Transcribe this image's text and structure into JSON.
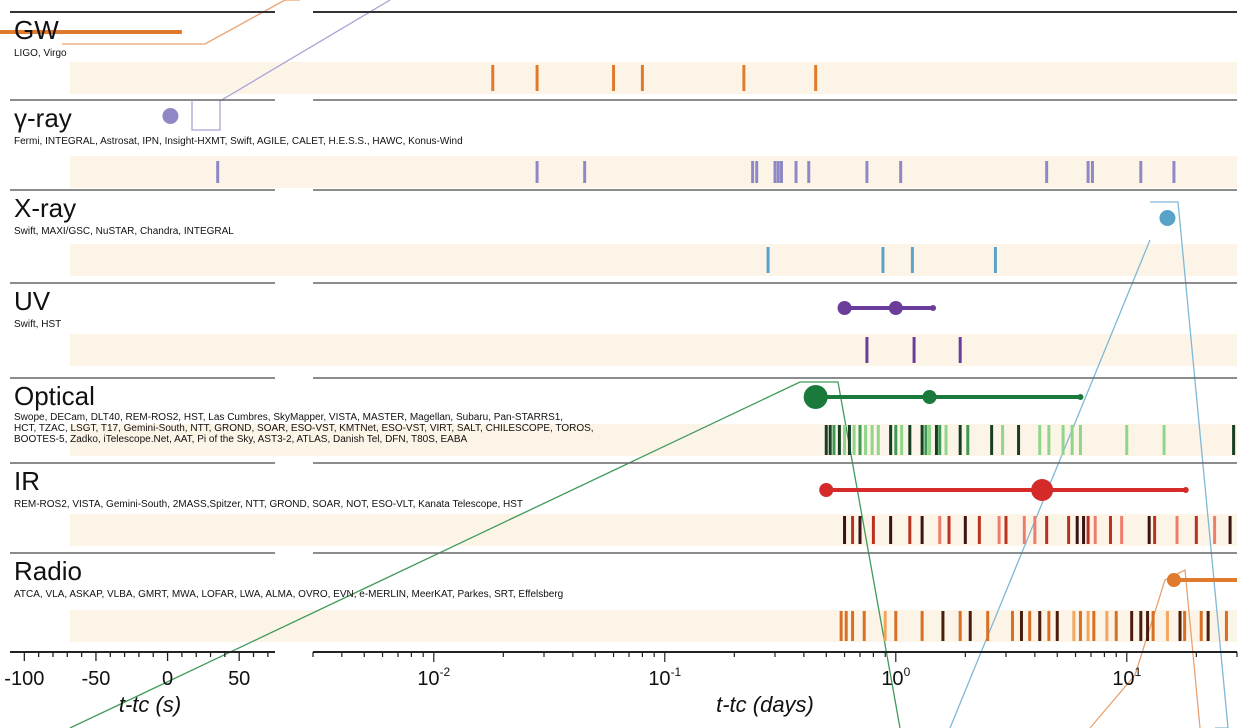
{
  "chart_data": {
    "type": "timeline",
    "xlabel_seconds": "t-tc (s)",
    "xlabel_days": "t-tc (days)",
    "seconds_axis": {
      "ticks": [
        "-100",
        "-50",
        "0",
        "50"
      ],
      "values": [
        -100,
        -50,
        0,
        50
      ],
      "xlim": [
        -110,
        75
      ]
    },
    "days_axis": {
      "scale": "log",
      "xlim": [
        0.003,
        30
      ],
      "major_ticks": [
        0.01,
        0.1,
        1,
        10
      ],
      "tick_bases": [
        "10",
        "10",
        "10",
        "10"
      ],
      "tick_exps": [
        "-2",
        "-1",
        "0",
        "1"
      ]
    },
    "bands": [
      {
        "id": "gw",
        "title": "GW",
        "subtitle": "LIGO, Virgo",
        "color": "#e07b2e",
        "seconds_detection": {
          "type": "span",
          "from": -100,
          "to": 10
        },
        "days_obs": [
          {
            "t": 0.018
          },
          {
            "t": 0.028
          },
          {
            "t": 0.06
          },
          {
            "t": 0.08
          },
          {
            "t": 0.22
          },
          {
            "t": 0.45
          }
        ]
      },
      {
        "id": "gamma",
        "title": "γ-ray",
        "subtitle": "Fermi, INTEGRAL, Astrosat, IPN, Insight-HXMT, Swift, AGILE, CALET, H.E.S.S., HAWC, Konus-Wind",
        "color": "#8f88c6",
        "seconds_detection": {
          "type": "point",
          "t": 2
        },
        "seconds_obs": [
          {
            "t": 35
          }
        ],
        "days_obs": [
          {
            "t": 0.028
          },
          {
            "t": 0.045
          },
          {
            "t": 0.24
          },
          {
            "t": 0.25
          },
          {
            "t": 0.3
          },
          {
            "t": 0.31
          },
          {
            "t": 0.32
          },
          {
            "t": 0.37
          },
          {
            "t": 0.42
          },
          {
            "t": 0.75
          },
          {
            "t": 1.05
          },
          {
            "t": 4.5
          },
          {
            "t": 6.8
          },
          {
            "t": 7.1
          },
          {
            "t": 11.5
          },
          {
            "t": 16
          }
        ]
      },
      {
        "id": "xray",
        "title": "X-ray",
        "subtitle": "Swift, MAXI/GSC, NuSTAR, Chandra, INTEGRAL",
        "color": "#5aa3c8",
        "detection": {
          "type": "point",
          "t": 15
        },
        "days_obs": [
          {
            "t": 0.28
          },
          {
            "t": 0.88
          },
          {
            "t": 1.18
          },
          {
            "t": 2.7
          }
        ]
      },
      {
        "id": "uv",
        "title": "UV",
        "subtitle": "Swift, HST",
        "color": "#6a3d9a",
        "detection": {
          "type": "range",
          "from": 0.6,
          "to": 1.45,
          "mid": 1.0
        },
        "days_obs": [
          {
            "t": 0.75
          },
          {
            "t": 1.2
          },
          {
            "t": 1.9
          }
        ]
      },
      {
        "id": "optical",
        "title": "Optical",
        "subtitle_lines": [
          "Swope, DECam, DLT40, REM-ROS2, HST, Las Cumbres, SkyMapper, VISTA, MASTER, Magellan, Subaru, Pan-STARRS1,",
          "HCT, TZAC, LSGT, T17, Gemini-South, NTT, GROND, SOAR, ESO-VST, KMTNet, ESO-VST, VIRT, SALT, CHILESCOPE, TOROS,",
          "BOOTES-5, Zadko, iTelescope.Net, AAT, Pi of the Sky, AST3-2, ATLAS, Danish Tel, DFN, T80S, EABA"
        ],
        "color": "#1a7a3c",
        "detection": {
          "type": "range",
          "from": 0.45,
          "to": 6.3,
          "mid": 1.4
        },
        "days_obs": [
          {
            "t": 0.5,
            "shade": "dark"
          },
          {
            "t": 0.52,
            "shade": "dark"
          },
          {
            "t": 0.54,
            "shade": "mid"
          },
          {
            "t": 0.57,
            "shade": "dark"
          },
          {
            "t": 0.6,
            "shade": "light"
          },
          {
            "t": 0.63,
            "shade": "dark"
          },
          {
            "t": 0.66,
            "shade": "light"
          },
          {
            "t": 0.7,
            "shade": "mid"
          },
          {
            "t": 0.74,
            "shade": "light"
          },
          {
            "t": 0.79,
            "shade": "light"
          },
          {
            "t": 0.84,
            "shade": "light"
          },
          {
            "t": 0.95,
            "shade": "dark"
          },
          {
            "t": 1.0,
            "shade": "mid"
          },
          {
            "t": 1.06,
            "shade": "light"
          },
          {
            "t": 1.15,
            "shade": "dark"
          },
          {
            "t": 1.3,
            "shade": "dark"
          },
          {
            "t": 1.35,
            "shade": "mid"
          },
          {
            "t": 1.4,
            "shade": "light"
          },
          {
            "t": 1.5,
            "shade": "dark"
          },
          {
            "t": 1.55,
            "shade": "mid"
          },
          {
            "t": 1.65,
            "shade": "light"
          },
          {
            "t": 1.9,
            "shade": "dark"
          },
          {
            "t": 2.05,
            "shade": "mid"
          },
          {
            "t": 2.6,
            "shade": "dark"
          },
          {
            "t": 2.9,
            "shade": "light"
          },
          {
            "t": 3.4,
            "shade": "dark"
          },
          {
            "t": 4.2,
            "shade": "light"
          },
          {
            "t": 4.6,
            "shade": "light"
          },
          {
            "t": 5.3,
            "shade": "light"
          },
          {
            "t": 5.8,
            "shade": "light"
          },
          {
            "t": 6.3,
            "shade": "light"
          },
          {
            "t": 10,
            "shade": "light"
          },
          {
            "t": 14.5,
            "shade": "light"
          },
          {
            "t": 29,
            "shade": "dark"
          }
        ]
      },
      {
        "id": "ir",
        "title": "IR",
        "subtitle": "REM-ROS2, VISTA, Gemini-South, 2MASS,Spitzer, NTT, GROND, SOAR, NOT, ESO-VLT, Kanata Telescope, HST",
        "color": "#d42a2a",
        "detection": {
          "type": "range",
          "from": 0.5,
          "to": 18,
          "mid": 4.3
        },
        "days_obs": [
          {
            "t": 0.6,
            "shade": "dark"
          },
          {
            "t": 0.65,
            "shade": "mid"
          },
          {
            "t": 0.7,
            "shade": "dark"
          },
          {
            "t": 0.8,
            "shade": "mid"
          },
          {
            "t": 0.95,
            "shade": "dark"
          },
          {
            "t": 1.15,
            "shade": "mid"
          },
          {
            "t": 1.3,
            "shade": "dark"
          },
          {
            "t": 1.55,
            "shade": "light"
          },
          {
            "t": 1.7,
            "shade": "mid"
          },
          {
            "t": 2.0,
            "shade": "dark"
          },
          {
            "t": 2.3,
            "shade": "mid"
          },
          {
            "t": 2.8,
            "shade": "light"
          },
          {
            "t": 3.0,
            "shade": "mid"
          },
          {
            "t": 3.6,
            "shade": "light"
          },
          {
            "t": 4.0,
            "shade": "light"
          },
          {
            "t": 4.5,
            "shade": "mid"
          },
          {
            "t": 5.6,
            "shade": "mid"
          },
          {
            "t": 6.1,
            "shade": "dark"
          },
          {
            "t": 6.5,
            "shade": "dark"
          },
          {
            "t": 6.8,
            "shade": "mid"
          },
          {
            "t": 7.3,
            "shade": "light"
          },
          {
            "t": 8.5,
            "shade": "mid"
          },
          {
            "t": 9.5,
            "shade": "light"
          },
          {
            "t": 12.5,
            "shade": "dark"
          },
          {
            "t": 13.2,
            "shade": "mid"
          },
          {
            "t": 16.5,
            "shade": "light"
          },
          {
            "t": 20,
            "shade": "mid"
          },
          {
            "t": 24,
            "shade": "light"
          },
          {
            "t": 28,
            "shade": "dark"
          }
        ]
      },
      {
        "id": "radio",
        "title": "Radio",
        "subtitle": "ATCA, VLA, ASKAP, VLBA, GMRT, MWA, LOFAR, LWA, ALMA, OVRO, EVN, e-MERLIN, MeerKAT, Parkes, SRT, Effelsberg",
        "color": "#e07b2e",
        "detection": {
          "type": "range",
          "from": 16,
          "to": 30,
          "mid": 16
        },
        "days_obs": [
          {
            "t": 0.58,
            "shade": "mid"
          },
          {
            "t": 0.61,
            "shade": "mid"
          },
          {
            "t": 0.65,
            "shade": "mid"
          },
          {
            "t": 0.73,
            "shade": "mid"
          },
          {
            "t": 0.9,
            "shade": "light"
          },
          {
            "t": 1.0,
            "shade": "mid"
          },
          {
            "t": 1.3,
            "shade": "mid"
          },
          {
            "t": 1.6,
            "shade": "dark"
          },
          {
            "t": 1.9,
            "shade": "mid"
          },
          {
            "t": 2.1,
            "shade": "dark"
          },
          {
            "t": 2.5,
            "shade": "mid"
          },
          {
            "t": 3.2,
            "shade": "mid"
          },
          {
            "t": 3.5,
            "shade": "dark"
          },
          {
            "t": 3.8,
            "shade": "mid"
          },
          {
            "t": 4.2,
            "shade": "dark"
          },
          {
            "t": 4.6,
            "shade": "mid"
          },
          {
            "t": 5.0,
            "shade": "dark"
          },
          {
            "t": 5.9,
            "shade": "light"
          },
          {
            "t": 6.3,
            "shade": "mid"
          },
          {
            "t": 6.8,
            "shade": "light"
          },
          {
            "t": 7.2,
            "shade": "mid"
          },
          {
            "t": 8.2,
            "shade": "light"
          },
          {
            "t": 9.0,
            "shade": "mid"
          },
          {
            "t": 10.5,
            "shade": "dark"
          },
          {
            "t": 11.5,
            "shade": "dark"
          },
          {
            "t": 12.3,
            "shade": "dark"
          },
          {
            "t": 13,
            "shade": "mid"
          },
          {
            "t": 15,
            "shade": "light"
          },
          {
            "t": 17,
            "shade": "dark"
          },
          {
            "t": 17.8,
            "shade": "mid"
          },
          {
            "t": 21,
            "shade": "mid"
          },
          {
            "t": 22.5,
            "shade": "dark"
          },
          {
            "t": 27,
            "shade": "mid"
          }
        ]
      }
    ]
  }
}
